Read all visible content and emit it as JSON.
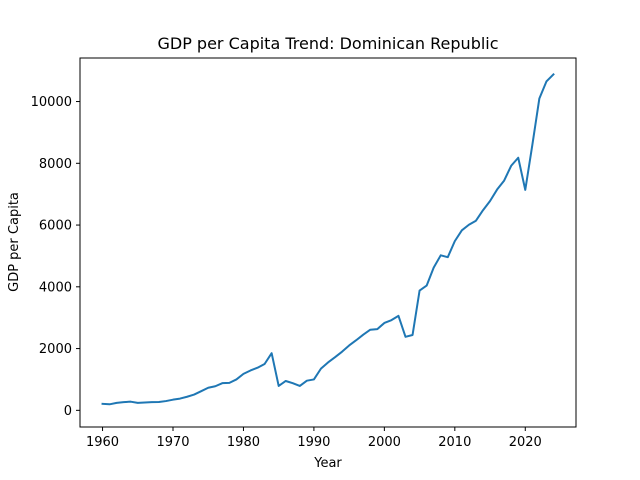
{
  "chart_data": {
    "type": "line",
    "title": "GDP per Capita Trend: Dominican Republic",
    "xlabel": "Year",
    "ylabel": "GDP per Capita",
    "xlim": [
      1956.8,
      2027.2
    ],
    "ylim": [
      -540,
      11410
    ],
    "xticks": [
      1960,
      1970,
      1980,
      1990,
      2000,
      2010,
      2020
    ],
    "yticks": [
      0,
      2000,
      4000,
      6000,
      8000,
      10000
    ],
    "grid": false,
    "line_color": "#1f77b4",
    "series": [
      {
        "x": [
          1960,
          1961,
          1962,
          1963,
          1964,
          1965,
          1966,
          1967,
          1968,
          1969,
          1970,
          1971,
          1972,
          1973,
          1974,
          1975,
          1976,
          1977,
          1978,
          1979,
          1980,
          1981,
          1982,
          1983,
          1984,
          1985,
          1986,
          1987,
          1988,
          1989,
          1990,
          1991,
          1992,
          1993,
          1994,
          1995,
          1996,
          1997,
          1998,
          1999,
          2000,
          2001,
          2002,
          2003,
          2004,
          2005,
          2006,
          2007,
          2008,
          2009,
          2010,
          2011,
          2012,
          2013,
          2014,
          2015,
          2016,
          2017,
          2018,
          2019,
          2020,
          2021,
          2022,
          2023,
          2024
        ],
        "values": [
          210,
          195,
          240,
          265,
          280,
          240,
          255,
          265,
          270,
          300,
          345,
          380,
          440,
          510,
          620,
          730,
          780,
          880,
          890,
          1000,
          1180,
          1290,
          1380,
          1500,
          1850,
          790,
          950,
          880,
          790,
          960,
          1000,
          1350,
          1550,
          1720,
          1900,
          2100,
          2270,
          2450,
          2610,
          2630,
          2830,
          2920,
          3060,
          2380,
          2440,
          3880,
          4040,
          4620,
          5020,
          4960,
          5480,
          5830,
          6010,
          6140,
          6480,
          6780,
          7150,
          7440,
          7920,
          8180,
          7140,
          8590,
          10100,
          10650,
          10880
        ]
      }
    ]
  }
}
